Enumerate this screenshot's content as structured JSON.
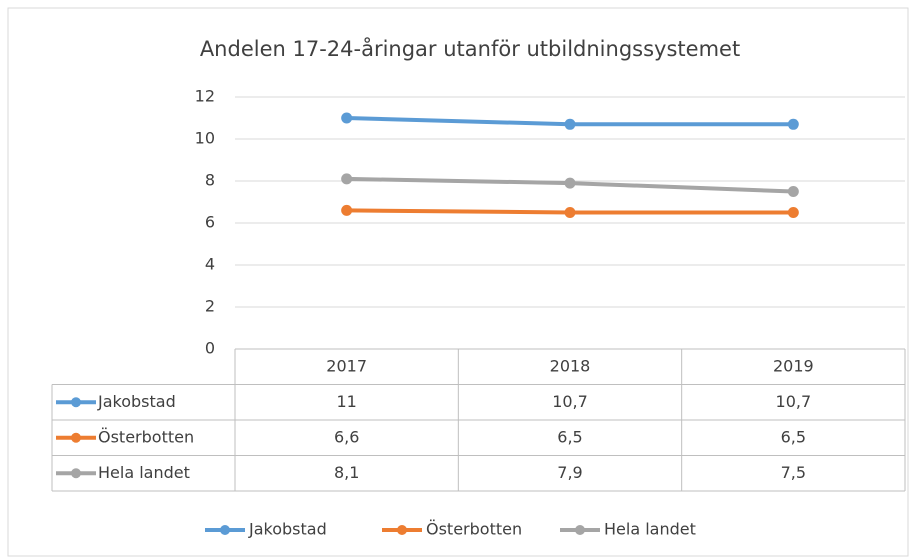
{
  "chart_data": {
    "type": "line",
    "title": "Andelen 17-24-åringar utanför utbildningssystemet",
    "categories": [
      "2017",
      "2018",
      "2019"
    ],
    "series": [
      {
        "name": "Jakobstad",
        "color": "#5b9bd5",
        "values": [
          11,
          10.7,
          10.7
        ],
        "value_labels": [
          "11",
          "10,7",
          "10,7"
        ]
      },
      {
        "name": "Österbotten",
        "color": "#ed7d31",
        "values": [
          6.6,
          6.5,
          6.5
        ],
        "value_labels": [
          "6,6",
          "6,5",
          "6,5"
        ]
      },
      {
        "name": "Hela landet",
        "color": "#a5a5a5",
        "values": [
          8.1,
          7.9,
          7.5
        ],
        "value_labels": [
          "8,1",
          "7,9",
          "7,5"
        ]
      }
    ],
    "ylim": [
      0,
      12
    ],
    "yticks": [
      0,
      2,
      4,
      6,
      8,
      10,
      12
    ],
    "grid": true,
    "legend": "bottom"
  }
}
